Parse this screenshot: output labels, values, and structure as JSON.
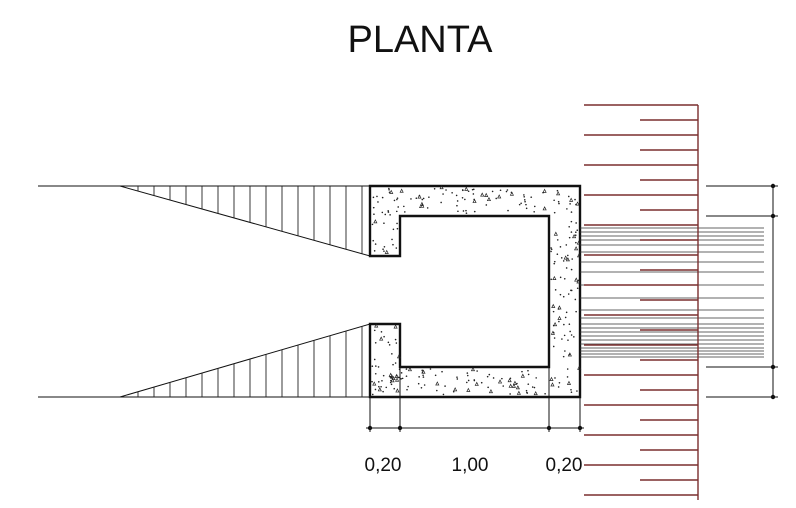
{
  "drawing": {
    "title": "PLANTA",
    "dimensions": [
      "0,20",
      "1,00",
      "0,20"
    ],
    "colors": {
      "outline": "#111111",
      "scale_ruler": "#7a2e2e",
      "concrete_fill": "#ffffff"
    },
    "symbols": [
      "concrete-stipple",
      "earth-hatch",
      "measuring-scale"
    ]
  }
}
